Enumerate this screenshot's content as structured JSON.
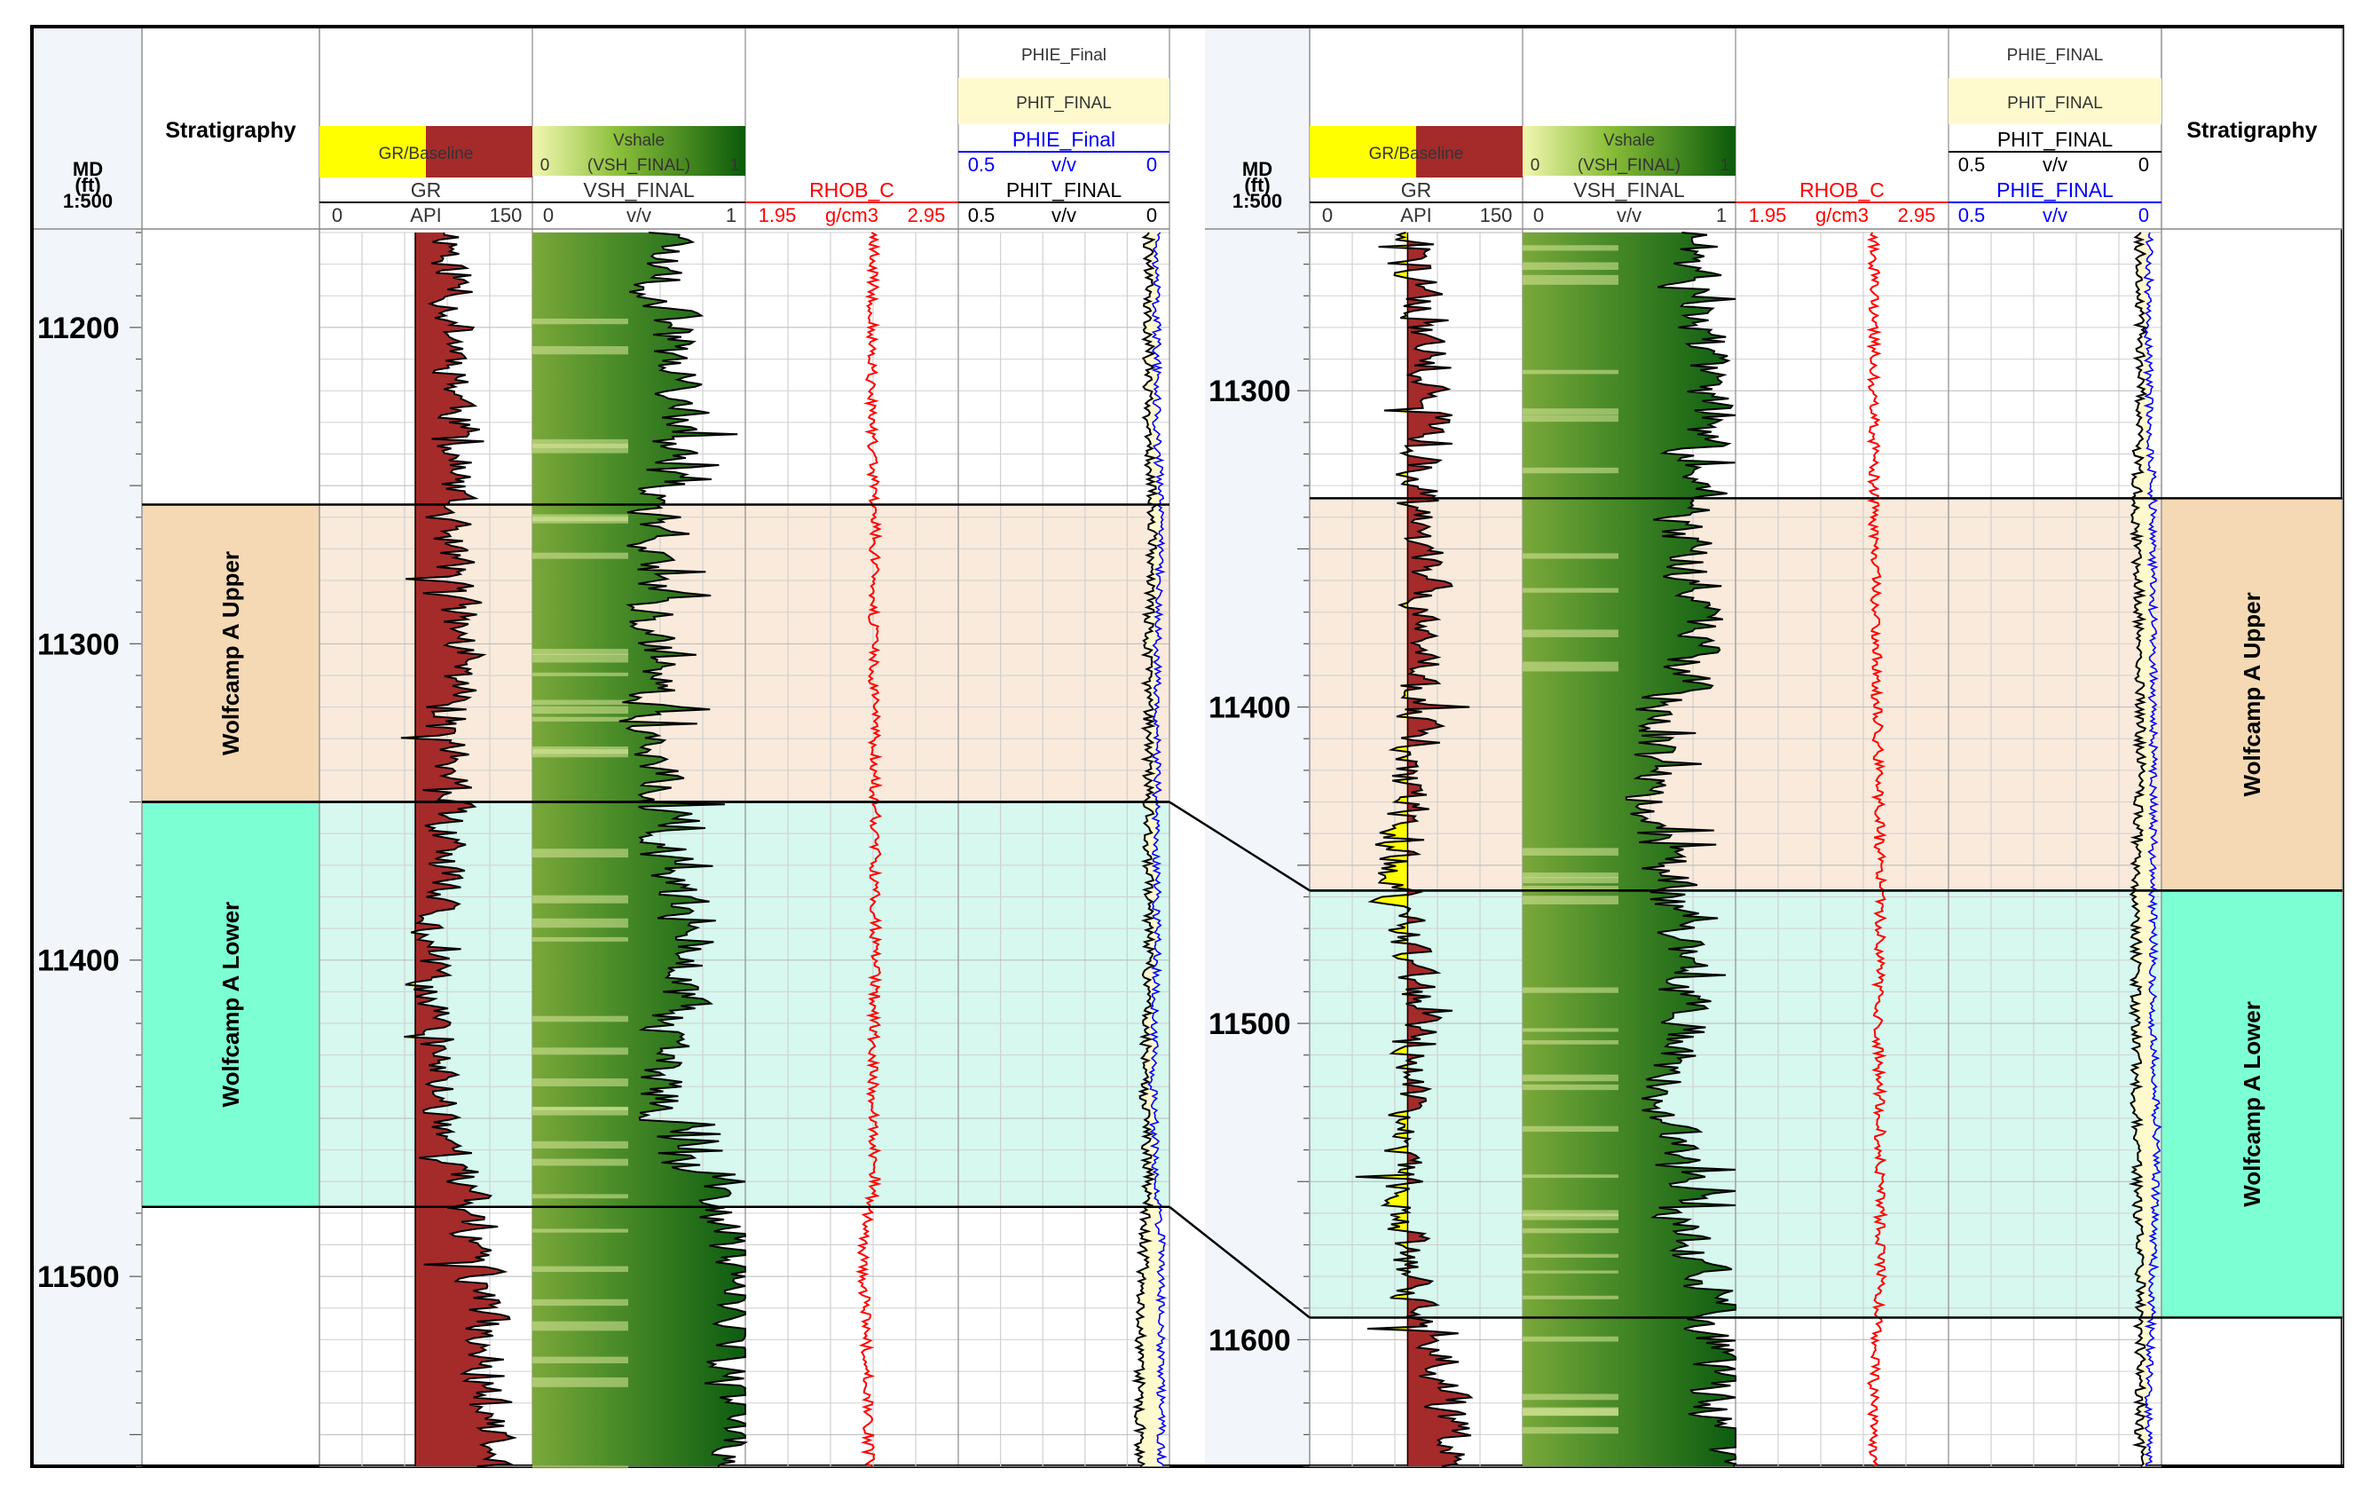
{
  "colors": {
    "gr_yellow": "#ffff00",
    "gr_red": "#a52a2a",
    "vsh_dark": "#006400",
    "vsh_light": "#e6f2a0",
    "rhob": "#ff0000",
    "phie": "#0000ff",
    "phit_fill": "#fffacd",
    "upper_fill": "#f9eadb",
    "upper_strat": "#f5d9b4",
    "lower_fill": "#d6f8ee",
    "lower_strat": "#7dffd4",
    "grid": "#d0d0d0",
    "frame": "#000000"
  },
  "panels": [
    {
      "id": "left",
      "md_header": [
        "MD",
        "(ft)",
        "1:500"
      ],
      "stratigraphy_title": "Stratigraphy",
      "gr": {
        "legend": "GR/Baseline",
        "name": "GR",
        "unit": "API",
        "min": "0",
        "max": "150"
      },
      "vsh": {
        "legend": "Vshale",
        "legend_line": "(VSH_FINAL)",
        "legend_min": "0",
        "legend_max": "1",
        "name": "VSH_FINAL",
        "unit": "v/v",
        "min": "0",
        "max": "1"
      },
      "rhob": {
        "name": "RHOB_C",
        "unit": "g/cm3",
        "min": "1.95",
        "max": "2.95"
      },
      "phi": {
        "top_label": "PHIE_Final",
        "fill_label": "PHIT_FINAL",
        "curve1": {
          "name": "PHIE_Final",
          "unit": "v/v",
          "min": "0.5",
          "max": "0"
        },
        "curve2": {
          "name": "PHIT_FINAL",
          "unit": "v/v",
          "min": "0.5",
          "max": "0"
        }
      },
      "depth_ticks": [
        "11200",
        "11300",
        "11400",
        "11500"
      ],
      "zones": [
        {
          "name": "Wolfcamp A Upper",
          "top_md": 11256,
          "base_md": 11350
        },
        {
          "name": "Wolfcamp A Lower",
          "top_md": 11350,
          "base_md": 11478
        }
      ],
      "depth_range_md": [
        11170,
        11560
      ]
    },
    {
      "id": "right",
      "md_header": [
        "MD",
        "(ft)",
        "1:500"
      ],
      "stratigraphy_title": "Stratigraphy",
      "gr": {
        "legend": "GR/Baseline",
        "name": "GR",
        "unit": "API",
        "min": "0",
        "max": "150"
      },
      "vsh": {
        "legend": "Vshale",
        "legend_line": "(VSH_FINAL)",
        "legend_min": "0",
        "legend_max": "1",
        "name": "VSH_FINAL",
        "unit": "v/v",
        "min": "0",
        "max": "1"
      },
      "rhob": {
        "name": "RHOB_C",
        "unit": "g/cm3",
        "min": "1.95",
        "max": "2.95"
      },
      "phi": {
        "top_label": "PHIE_FINAL",
        "fill_label": "PHIT_FINAL",
        "curve1": {
          "name": "PHIT_FINAL",
          "unit": "v/v",
          "min": "0.5",
          "max": "0"
        },
        "curve2": {
          "name": "PHIE_FINAL",
          "unit": "v/v",
          "min": "0.5",
          "max": "0"
        }
      },
      "depth_ticks": [
        "11300",
        "11400",
        "11500",
        "11600"
      ],
      "zones": [
        {
          "name": "Wolfcamp A Upper",
          "top_md": 11334,
          "base_md": 11458
        },
        {
          "name": "Wolfcamp A Lower",
          "top_md": 11458,
          "base_md": 11593
        }
      ],
      "depth_range_md": [
        11250,
        11640
      ]
    }
  ],
  "chart_data": [
    {
      "type": "line",
      "title": "",
      "well_panel": "left",
      "ylabel": "MD (ft)",
      "ylim": [
        11560,
        11170
      ],
      "ytick_labels": [
        "11200",
        "11300",
        "11400",
        "11500"
      ],
      "series": [
        {
          "name": "GR",
          "unit": "API",
          "xlim": [
            0,
            150
          ],
          "md": [
            11180,
            11230,
            11260,
            11300,
            11350,
            11400,
            11440,
            11470,
            11490,
            11520,
            11550
          ],
          "values": [
            95,
            100,
            90,
            100,
            90,
            75,
            85,
            100,
            110,
            118,
            120
          ]
        },
        {
          "name": "VSH_FINAL",
          "unit": "v/v",
          "xlim": [
            0,
            1
          ],
          "md": [
            11180,
            11230,
            11260,
            11300,
            11350,
            11400,
            11440,
            11470,
            11490,
            11520,
            11550
          ],
          "values": [
            0.6,
            0.7,
            0.6,
            0.55,
            0.6,
            0.7,
            0.6,
            0.75,
            0.95,
            0.95,
            0.95
          ]
        },
        {
          "name": "RHOB_C",
          "unit": "g/cm3",
          "xlim": [
            1.95,
            2.95
          ],
          "md": [
            11180,
            11230,
            11260,
            11300,
            11350,
            11400,
            11440,
            11470,
            11490,
            11520,
            11550
          ],
          "values": [
            2.55,
            2.54,
            2.56,
            2.55,
            2.56,
            2.56,
            2.55,
            2.56,
            2.5,
            2.52,
            2.53
          ]
        },
        {
          "name": "PHIT_FINAL",
          "unit": "v/v",
          "xlim": [
            0.5,
            0
          ],
          "md": [
            11180,
            11230,
            11260,
            11300,
            11350,
            11400,
            11440,
            11470,
            11490,
            11520,
            11550
          ],
          "values": [
            0.05,
            0.05,
            0.04,
            0.05,
            0.05,
            0.05,
            0.06,
            0.05,
            0.06,
            0.07,
            0.07
          ]
        },
        {
          "name": "PHIE_Final",
          "unit": "v/v",
          "xlim": [
            0.5,
            0
          ],
          "md": [
            11180,
            11230,
            11260,
            11300,
            11350,
            11400,
            11440,
            11470,
            11490,
            11520,
            11550
          ],
          "values": [
            0.03,
            0.03,
            0.02,
            0.03,
            0.03,
            0.03,
            0.04,
            0.03,
            0.02,
            0.02,
            0.02
          ]
        }
      ]
    },
    {
      "type": "line",
      "title": "",
      "well_panel": "right",
      "ylabel": "MD (ft)",
      "ylim": [
        11640,
        11250
      ],
      "ytick_labels": [
        "11300",
        "11400",
        "11500",
        "11600"
      ],
      "series": [
        {
          "name": "GR",
          "unit": "API",
          "xlim": [
            0,
            150
          ],
          "md": [
            11260,
            11300,
            11340,
            11380,
            11420,
            11460,
            11500,
            11540,
            11580,
            11610,
            11630
          ],
          "values": [
            75,
            85,
            75,
            85,
            70,
            60,
            80,
            60,
            70,
            90,
            100
          ]
        },
        {
          "name": "VSH_FINAL",
          "unit": "v/v",
          "xlim": [
            0,
            1
          ],
          "md": [
            11260,
            11300,
            11340,
            11380,
            11420,
            11460,
            11500,
            11540,
            11580,
            11610,
            11630
          ],
          "values": [
            0.8,
            0.85,
            0.75,
            0.8,
            0.55,
            0.7,
            0.75,
            0.7,
            0.8,
            0.9,
            0.95
          ]
        },
        {
          "name": "RHOB_C",
          "unit": "g/cm3",
          "xlim": [
            1.95,
            2.95
          ],
          "md": [
            11260,
            11300,
            11340,
            11380,
            11420,
            11460,
            11500,
            11540,
            11580,
            11610,
            11630
          ],
          "values": [
            2.6,
            2.6,
            2.6,
            2.61,
            2.62,
            2.63,
            2.62,
            2.63,
            2.63,
            2.6,
            2.59
          ]
        },
        {
          "name": "PHIT_FINAL",
          "unit": "v/v",
          "xlim": [
            0.5,
            0
          ],
          "md": [
            11260,
            11300,
            11340,
            11380,
            11420,
            11460,
            11500,
            11540,
            11580,
            11610,
            11630
          ],
          "values": [
            0.05,
            0.05,
            0.06,
            0.05,
            0.05,
            0.06,
            0.06,
            0.06,
            0.05,
            0.05,
            0.05
          ]
        },
        {
          "name": "PHIE_FINAL",
          "unit": "v/v",
          "xlim": [
            0.5,
            0
          ],
          "md": [
            11260,
            11300,
            11340,
            11380,
            11420,
            11460,
            11500,
            11540,
            11580,
            11610,
            11630
          ],
          "values": [
            0.03,
            0.03,
            0.02,
            0.02,
            0.02,
            0.02,
            0.02,
            0.01,
            0.02,
            0.03,
            0.03
          ]
        }
      ]
    }
  ]
}
